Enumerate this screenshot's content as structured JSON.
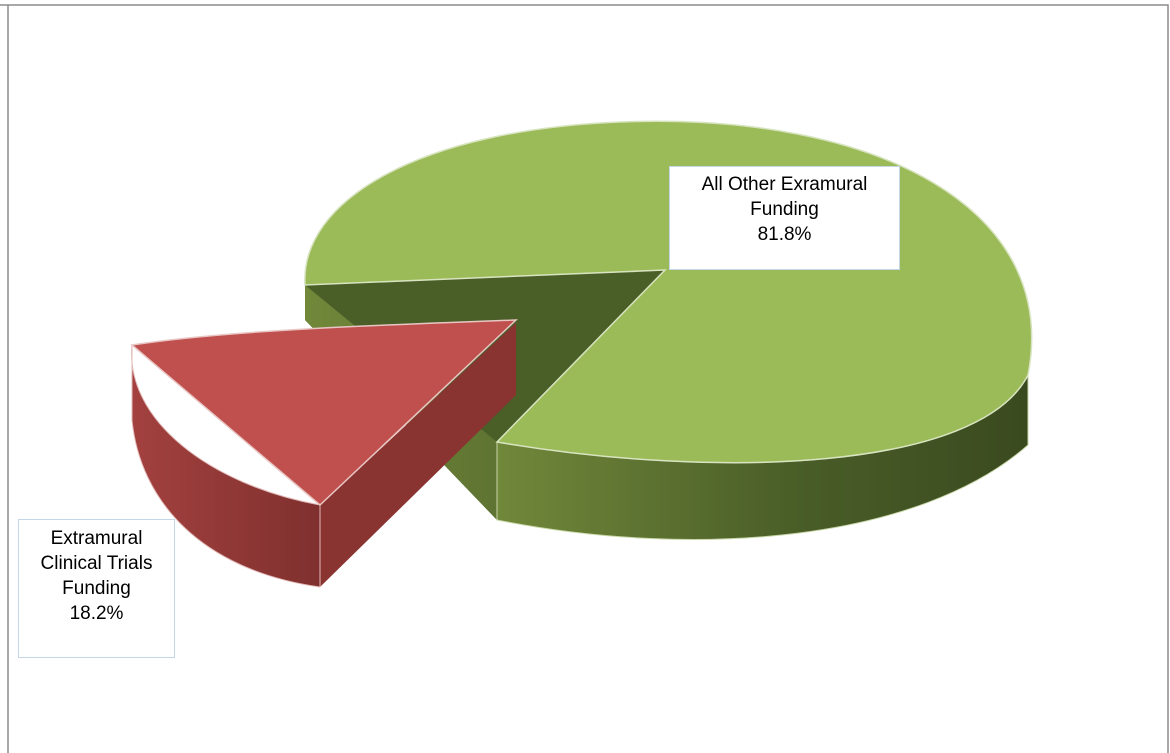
{
  "chart_data": {
    "type": "pie",
    "style": "3d-exploded",
    "slices": [
      {
        "label": "All Other Exramural Funding",
        "label_lines": [
          "All Other Exramural",
          "Funding"
        ],
        "percent": 81.8,
        "percent_label": "81.8%",
        "color": "#9bbb59",
        "side_color": "#4a5e28"
      },
      {
        "label": "Extramural Clinical Trials Funding",
        "label_lines": [
          "Extramural",
          "Clinical Trials",
          "Funding"
        ],
        "percent": 18.2,
        "percent_label": "18.2%",
        "color": "#c0504d",
        "side_color": "#8a3432"
      }
    ],
    "exploded_slice": "Extramural Clinical Trials Funding",
    "legend": "none",
    "data_labels": true
  }
}
